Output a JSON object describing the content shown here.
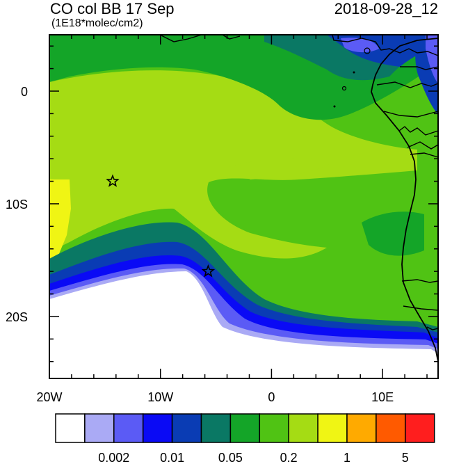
{
  "header": {
    "title": "CO col BB 17 Sep",
    "units": "(1E18*molec/cm2)",
    "timestamp": "2018-09-28_12"
  },
  "axes": {
    "x_ticks": [
      {
        "lon": -20,
        "label": "20W"
      },
      {
        "lon": -10,
        "label": "10W"
      },
      {
        "lon": 0,
        "label": "0"
      },
      {
        "lon": 10,
        "label": "10E"
      }
    ],
    "y_ticks": [
      {
        "lat": 0,
        "label": "0"
      },
      {
        "lat": -10,
        "label": "10S"
      },
      {
        "lat": -20,
        "label": "20S"
      }
    ],
    "lon_range": [
      -20,
      15
    ],
    "lat_range": [
      -25.5,
      5
    ]
  },
  "markers": [
    {
      "name": "star-marker-1",
      "lon": -14.3,
      "lat": -8.0
    },
    {
      "name": "star-marker-2",
      "lon": -5.7,
      "lat": -16.0
    }
  ],
  "colorbar": {
    "colors": [
      "#ffffff",
      "#aaaaf5",
      "#5b5bf5",
      "#0a0af5",
      "#0a3cb4",
      "#0a7864",
      "#14a528",
      "#50c314",
      "#a5dc14",
      "#f0f514",
      "#ffaa00",
      "#ff5a00",
      "#ff1e1e"
    ],
    "labels": [
      {
        "after_box": 2,
        "text": "0.002"
      },
      {
        "after_box": 4,
        "text": "0.01"
      },
      {
        "after_box": 6,
        "text": "0.05"
      },
      {
        "after_box": 8,
        "text": "0.2"
      },
      {
        "after_box": 10,
        "text": "1"
      },
      {
        "after_box": 12,
        "text": "5"
      }
    ]
  }
}
